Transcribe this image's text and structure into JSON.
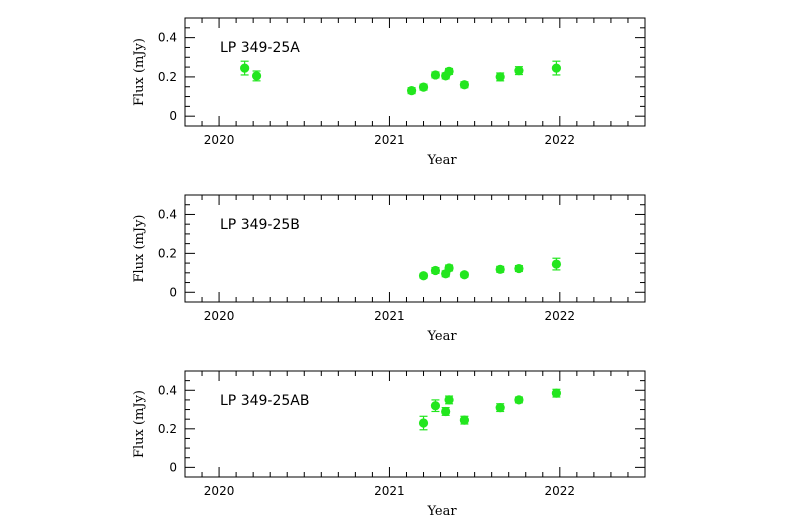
{
  "chart_data": [
    {
      "type": "scatter",
      "title": "LP 349-25A",
      "xlabel": "Year",
      "ylabel": "Flux (mJy)",
      "xlim": [
        2019.8,
        2022.5
      ],
      "ylim": [
        -0.05,
        0.5
      ],
      "xticks": [
        "2020",
        "2021",
        "2022"
      ],
      "yticks": [
        "0",
        "0.2",
        "0.4"
      ],
      "grid": false,
      "color": "#22e61e",
      "points": [
        {
          "x": 2020.15,
          "y": 0.245,
          "err": 0.035
        },
        {
          "x": 2020.22,
          "y": 0.205,
          "err": 0.025
        },
        {
          "x": 2021.13,
          "y": 0.13,
          "err": 0.015
        },
        {
          "x": 2021.2,
          "y": 0.148,
          "err": 0.015
        },
        {
          "x": 2021.27,
          "y": 0.21,
          "err": 0.015
        },
        {
          "x": 2021.33,
          "y": 0.205,
          "err": 0.015
        },
        {
          "x": 2021.35,
          "y": 0.228,
          "err": 0.015
        },
        {
          "x": 2021.44,
          "y": 0.16,
          "err": 0.015
        },
        {
          "x": 2021.65,
          "y": 0.2,
          "err": 0.02
        },
        {
          "x": 2021.76,
          "y": 0.232,
          "err": 0.02
        },
        {
          "x": 2021.98,
          "y": 0.245,
          "err": 0.035
        }
      ]
    },
    {
      "type": "scatter",
      "title": "LP 349-25B",
      "xlabel": "Year",
      "ylabel": "Flux (mJy)",
      "xlim": [
        2019.8,
        2022.5
      ],
      "ylim": [
        -0.05,
        0.5
      ],
      "xticks": [
        "2020",
        "2021",
        "2022"
      ],
      "yticks": [
        "0",
        "0.2",
        "0.4"
      ],
      "grid": false,
      "color": "#22e61e",
      "points": [
        {
          "x": 2021.2,
          "y": 0.085,
          "err": 0.012
        },
        {
          "x": 2021.27,
          "y": 0.112,
          "err": 0.015
        },
        {
          "x": 2021.33,
          "y": 0.095,
          "err": 0.015
        },
        {
          "x": 2021.35,
          "y": 0.125,
          "err": 0.015
        },
        {
          "x": 2021.44,
          "y": 0.09,
          "err": 0.012
        },
        {
          "x": 2021.65,
          "y": 0.118,
          "err": 0.015
        },
        {
          "x": 2021.76,
          "y": 0.122,
          "err": 0.015
        },
        {
          "x": 2021.98,
          "y": 0.145,
          "err": 0.03
        }
      ]
    },
    {
      "type": "scatter",
      "title": "LP 349-25AB",
      "xlabel": "Year",
      "ylabel": "Flux (mJy)",
      "xlim": [
        2019.8,
        2022.5
      ],
      "ylim": [
        -0.05,
        0.5
      ],
      "xticks": [
        "2020",
        "2021",
        "2022"
      ],
      "yticks": [
        "0",
        "0.2",
        "0.4"
      ],
      "grid": false,
      "color": "#22e61e",
      "points": [
        {
          "x": 2021.2,
          "y": 0.23,
          "err": 0.035
        },
        {
          "x": 2021.27,
          "y": 0.32,
          "err": 0.03
        },
        {
          "x": 2021.33,
          "y": 0.29,
          "err": 0.02
        },
        {
          "x": 2021.35,
          "y": 0.35,
          "err": 0.02
        },
        {
          "x": 2021.44,
          "y": 0.245,
          "err": 0.02
        },
        {
          "x": 2021.65,
          "y": 0.31,
          "err": 0.02
        },
        {
          "x": 2021.76,
          "y": 0.35,
          "err": 0.015
        },
        {
          "x": 2021.98,
          "y": 0.385,
          "err": 0.02
        }
      ]
    }
  ]
}
